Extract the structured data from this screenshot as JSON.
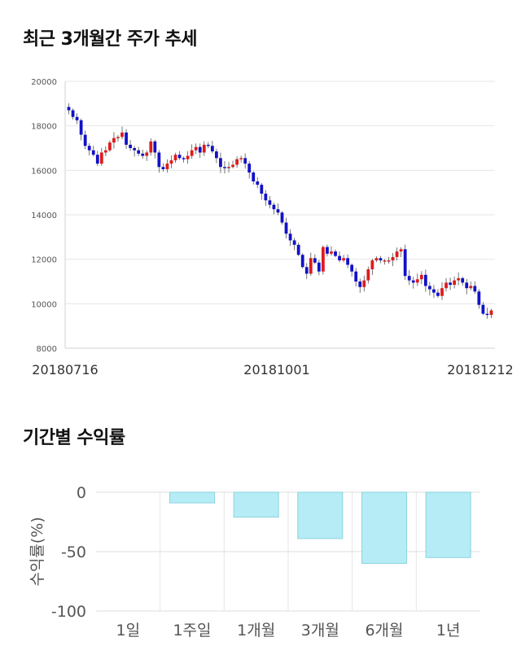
{
  "titles": {
    "price_trend": "최근 3개월간 주가 추세",
    "period_returns": "기간별 수익률"
  },
  "colors": {
    "up": "#dd1c1c",
    "down": "#1111c8",
    "return_bar_fill": "#b5ecf5",
    "return_bar_stroke": "#8ed3e0",
    "grid": "#e6e6e6"
  },
  "chart_data": [
    {
      "type": "candlestick",
      "title": "",
      "y_ticks": [
        "20000",
        "18000",
        "16000",
        "14000",
        "12000",
        "10000",
        "8000"
      ],
      "ylim": [
        8000,
        20000
      ],
      "x_labels": [
        "20180716",
        "20181001",
        "20181212"
      ],
      "grid": true,
      "closes": [
        18700,
        18400,
        18250,
        17600,
        17100,
        16900,
        16700,
        16300,
        16800,
        16900,
        17250,
        17450,
        17500,
        17700,
        17150,
        17000,
        16900,
        16750,
        16650,
        16800,
        17300,
        16800,
        16150,
        16050,
        16300,
        16450,
        16700,
        16550,
        16500,
        16650,
        16900,
        17050,
        16800,
        17150,
        17100,
        16850,
        16550,
        16150,
        16100,
        16150,
        16250,
        16500,
        16550,
        16300,
        15900,
        15500,
        15350,
        14950,
        14650,
        14450,
        14250,
        14100,
        13650,
        13150,
        12850,
        12650,
        12200,
        11650,
        11350,
        12050,
        11850,
        11450,
        12550,
        12250,
        12350,
        12150,
        11950,
        12050,
        11750,
        11450,
        11000,
        10750,
        11050,
        11550,
        11950,
        12050,
        11950,
        11950,
        11950,
        12100,
        12350,
        12450,
        11250,
        11050,
        10950,
        11100,
        11300,
        10800,
        10650,
        10500,
        10350,
        10700,
        10950,
        10850,
        11050,
        11150,
        10950,
        10700,
        10800,
        10550,
        9950,
        9550,
        9500,
        9700
      ]
    },
    {
      "type": "bar",
      "title": "",
      "xlabel": "",
      "ylabel": "수익률(%)",
      "categories": [
        "1일",
        "1주일",
        "1개월",
        "3개월",
        "6개월",
        "1년"
      ],
      "values": [
        0,
        -9,
        -21,
        -39,
        -60,
        -55
      ],
      "ylim": [
        -100,
        0
      ],
      "y_ticks": [
        "0",
        "-50",
        "-100"
      ],
      "grid": true
    }
  ]
}
